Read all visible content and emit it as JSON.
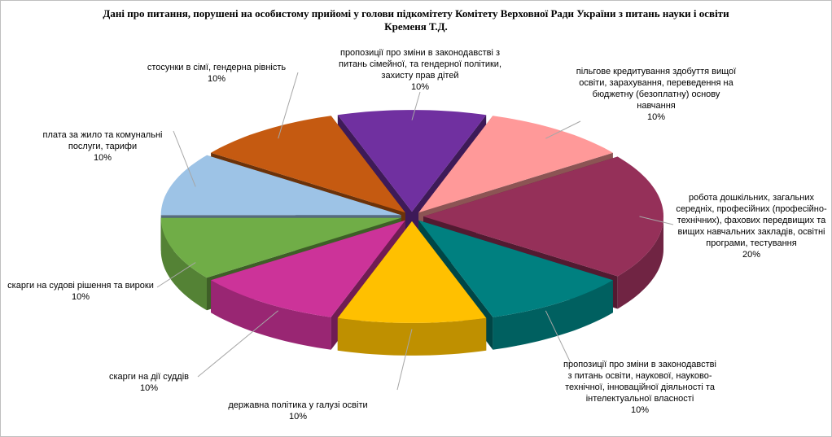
{
  "chart_data": {
    "type": "pie3d",
    "title": "Дані про питання, порушені на особистому прийомі у голови підкомітету Комітету Верховної Ради України з питань науки і освіти Кременя Т.Д.",
    "categories": [
      "пропозиції про зміни в законодавстві з питань сімейної, та гендерної політики, захисту прав дітей",
      "пільгове кредитування здобуття вищої освіти, зарахування, переведення на бюджетну (безоплатну) основу навчання",
      "робота дошкільних, загальних середніх, професійних (професійно-технічних), фахових передвищих та вищих навчальних закладів, освітні програми, тестування",
      "пропозиції про зміни в законодавстві з питань освіти, наукової, науково-технічної, інноваційної діяльності та інтелектуальної власності",
      "державна політика у галузі освіти",
      "скарги на дії суддів",
      "скарги на судові рішення та вироки",
      "плата за жило та комунальні послуги, тарифи",
      "стосунки в сімї, гендерна рівність"
    ],
    "values": [
      10,
      10,
      20,
      10,
      10,
      10,
      10,
      10,
      10
    ],
    "value_labels": [
      "10%",
      "10%",
      "20%",
      "10%",
      "10%",
      "10%",
      "10%",
      "10%",
      "10%"
    ],
    "colors": [
      "#7030a0",
      "#ff9999",
      "#953059",
      "#008080",
      "#ffc000",
      "#cc3399",
      "#70ad47",
      "#9dc3e6",
      "#c55a11"
    ]
  }
}
